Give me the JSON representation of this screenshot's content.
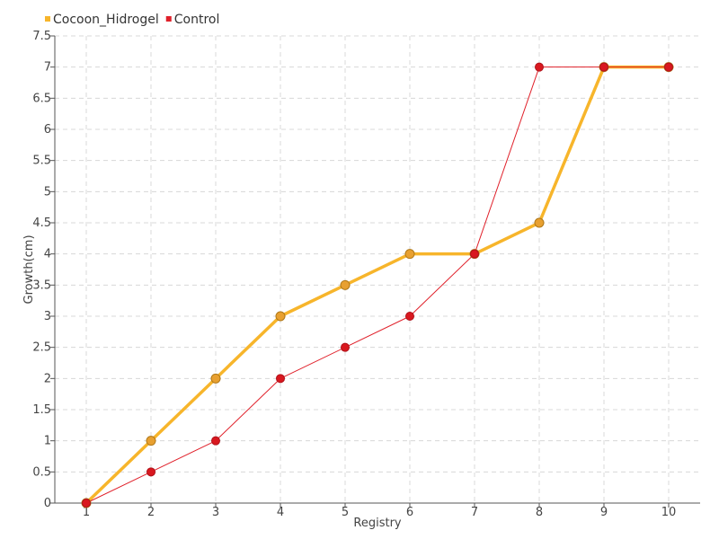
{
  "chart_data": {
    "type": "line",
    "title": "",
    "xlabel": "Registry",
    "ylabel": "Growth(cm)",
    "categories": [
      "1",
      "2",
      "3",
      "4",
      "5",
      "6",
      "7",
      "8",
      "9",
      "10"
    ],
    "y_ticks": [
      "0",
      "0.5",
      "1",
      "1.5",
      "2",
      "2.5",
      "3",
      "3.5",
      "4",
      "4.5",
      "5",
      "5.5",
      "6",
      "6.5",
      "7",
      "7.5"
    ],
    "ylim": [
      0,
      7.5
    ],
    "grid": true,
    "legend_position": "top-left",
    "series": [
      {
        "name": "Cocoon_Hidrogel",
        "color": "#f7b52b",
        "marker_color": "#e8a030",
        "values": [
          0,
          1,
          2,
          3,
          3.5,
          4,
          4,
          4.5,
          7,
          7
        ]
      },
      {
        "name": "Control",
        "color": "#e0202a",
        "marker_color": "#d9181f",
        "values": [
          0,
          0.5,
          1,
          2,
          2.5,
          3,
          4,
          7,
          7,
          7
        ]
      }
    ]
  }
}
